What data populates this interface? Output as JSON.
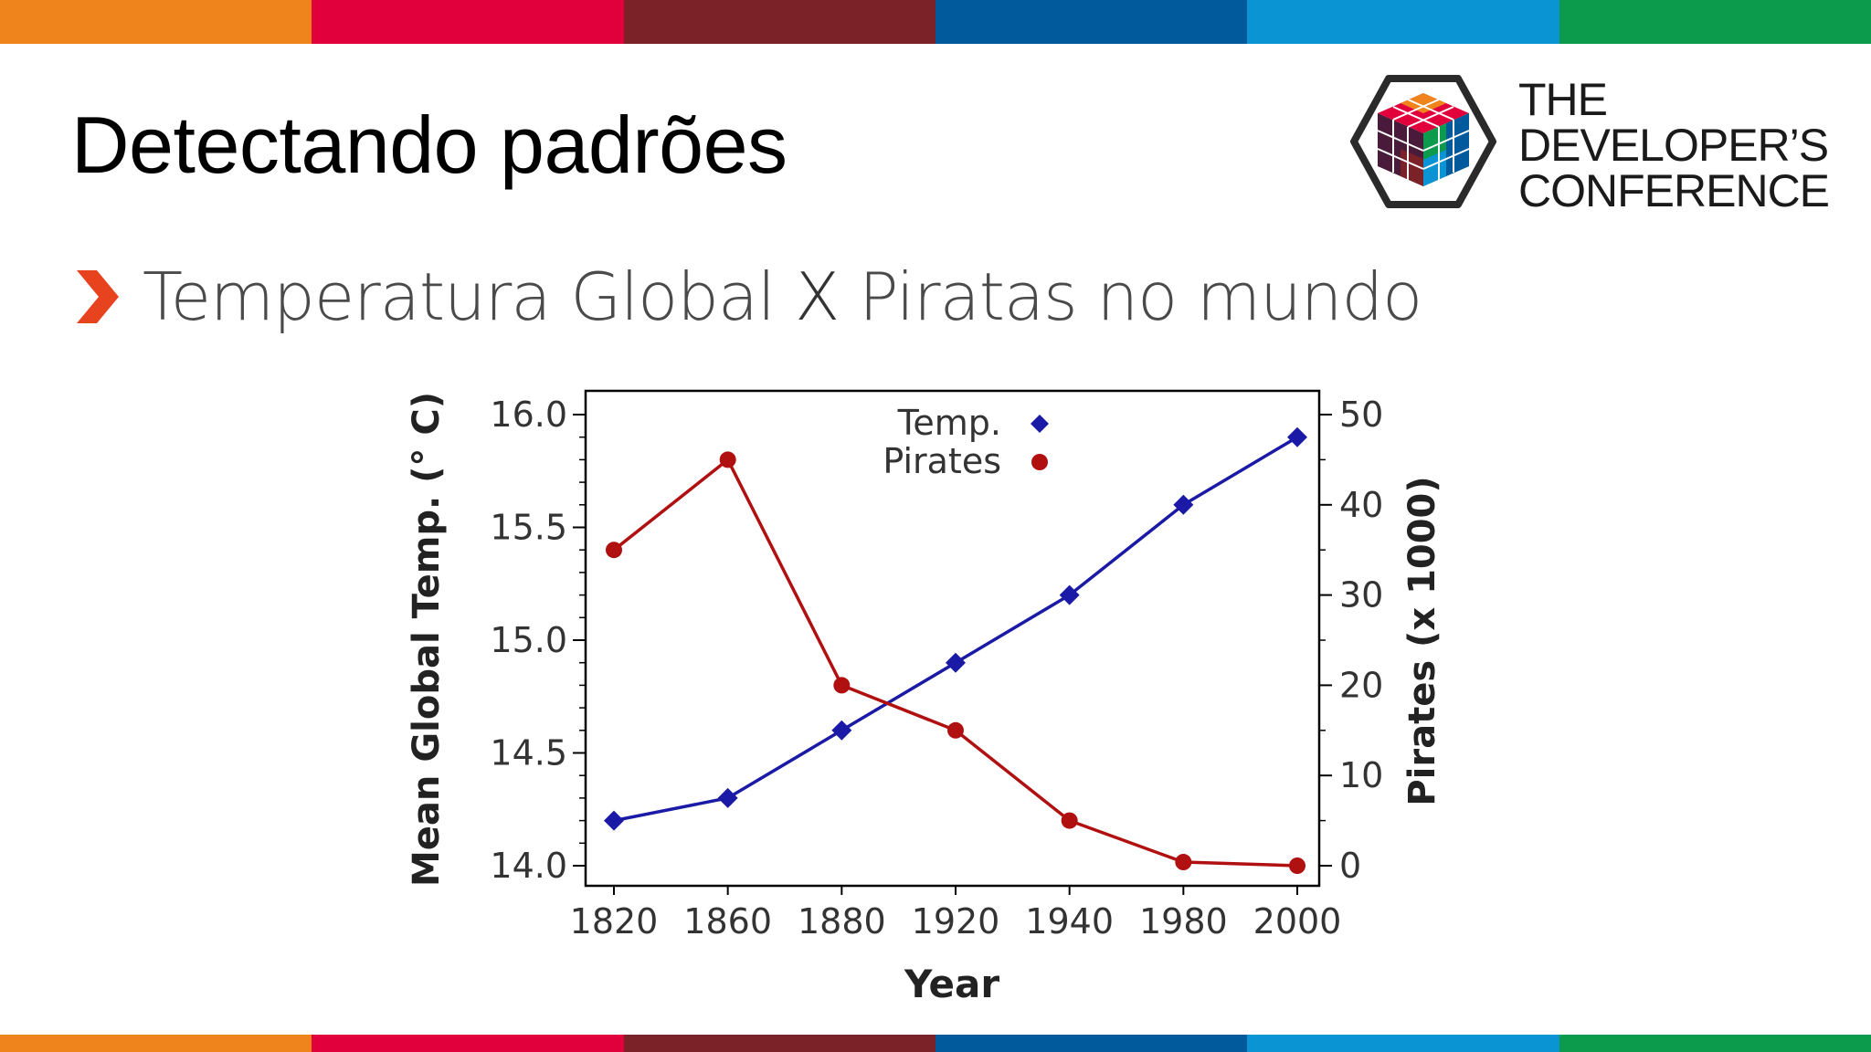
{
  "slide": {
    "title": "Detectando padrões",
    "bullet": {
      "part1": "Temperatura Global ",
      "x_mark": "X",
      "part2": " Piratas no mundo"
    }
  },
  "logo": {
    "icon": "cube-hexagon-logo-icon",
    "lines": [
      "THE",
      "DEVELOPER’S",
      "CONFERENCE"
    ]
  },
  "color_bar": [
    "#f0841c",
    "#e2003c",
    "#7b2228",
    "#005a9c",
    "#0a94d3",
    "#0c9a4c"
  ],
  "chart_data": {
    "type": "line",
    "xlabel": "Year",
    "ylabel": "Mean Global Temp. (° C)",
    "y2label": "Pirates (x 1000)",
    "x": [
      1820,
      1860,
      1880,
      1920,
      1940,
      1980,
      2000
    ],
    "x_tick_labels": [
      "1820",
      "1860",
      "1880",
      "1920",
      "1940",
      "1980",
      "2000"
    ],
    "ylim": [
      14.0,
      16.0
    ],
    "y_ticks": [
      "14.0",
      "14.5",
      "15.0",
      "15.5",
      "16.0"
    ],
    "y2lim": [
      0,
      50
    ],
    "y2_ticks": [
      "0",
      "10",
      "20",
      "30",
      "40",
      "50"
    ],
    "grid": false,
    "legend": "top-center",
    "series": [
      {
        "name": "Temp.",
        "axis": "left",
        "color": "#1a1aa6",
        "marker": "diamond",
        "values": [
          14.2,
          14.3,
          14.6,
          14.9,
          15.2,
          15.6,
          15.9
        ]
      },
      {
        "name": "Pirates",
        "axis": "right",
        "color": "#b01010",
        "marker": "circle",
        "values": [
          35,
          45,
          20,
          15,
          5,
          0.4,
          0
        ]
      }
    ]
  }
}
